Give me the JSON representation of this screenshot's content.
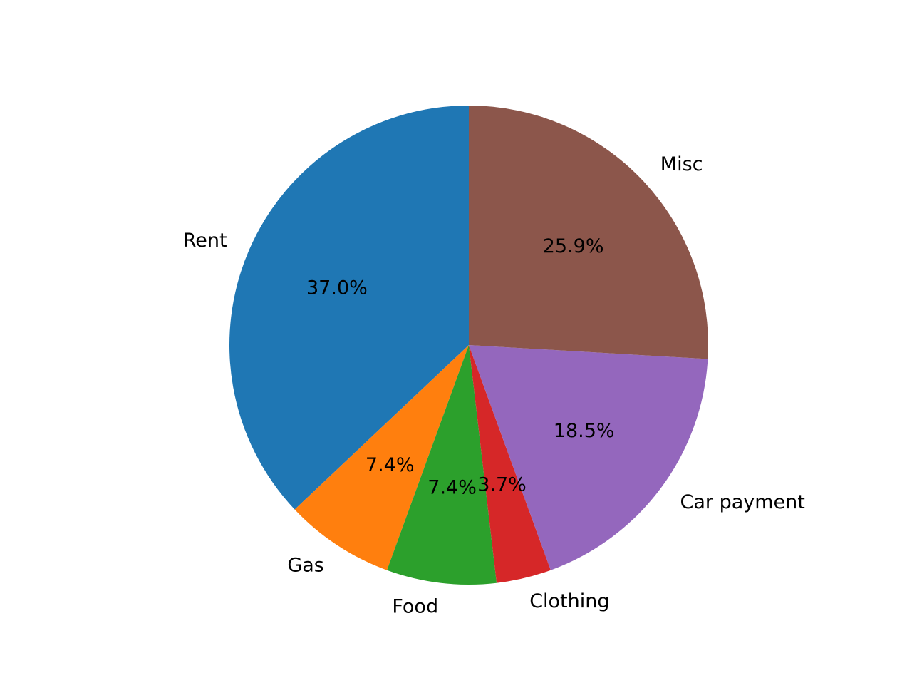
{
  "chart_data": {
    "type": "pie",
    "categories": [
      "Rent",
      "Gas",
      "Food",
      "Clothing",
      "Car payment",
      "Misc"
    ],
    "values": [
      37.0,
      7.4,
      7.4,
      3.7,
      18.5,
      25.9
    ],
    "percent_labels": [
      "37.0%",
      "7.4%",
      "7.4%",
      "3.7%",
      "18.5%",
      "25.9%"
    ],
    "colors": [
      "#1f77b4",
      "#ff7f0e",
      "#2ca02c",
      "#d62728",
      "#9467bd",
      "#8c564b"
    ],
    "start_angle_deg": 90,
    "direction": "counterclockwise",
    "title": "",
    "legend": "none"
  }
}
